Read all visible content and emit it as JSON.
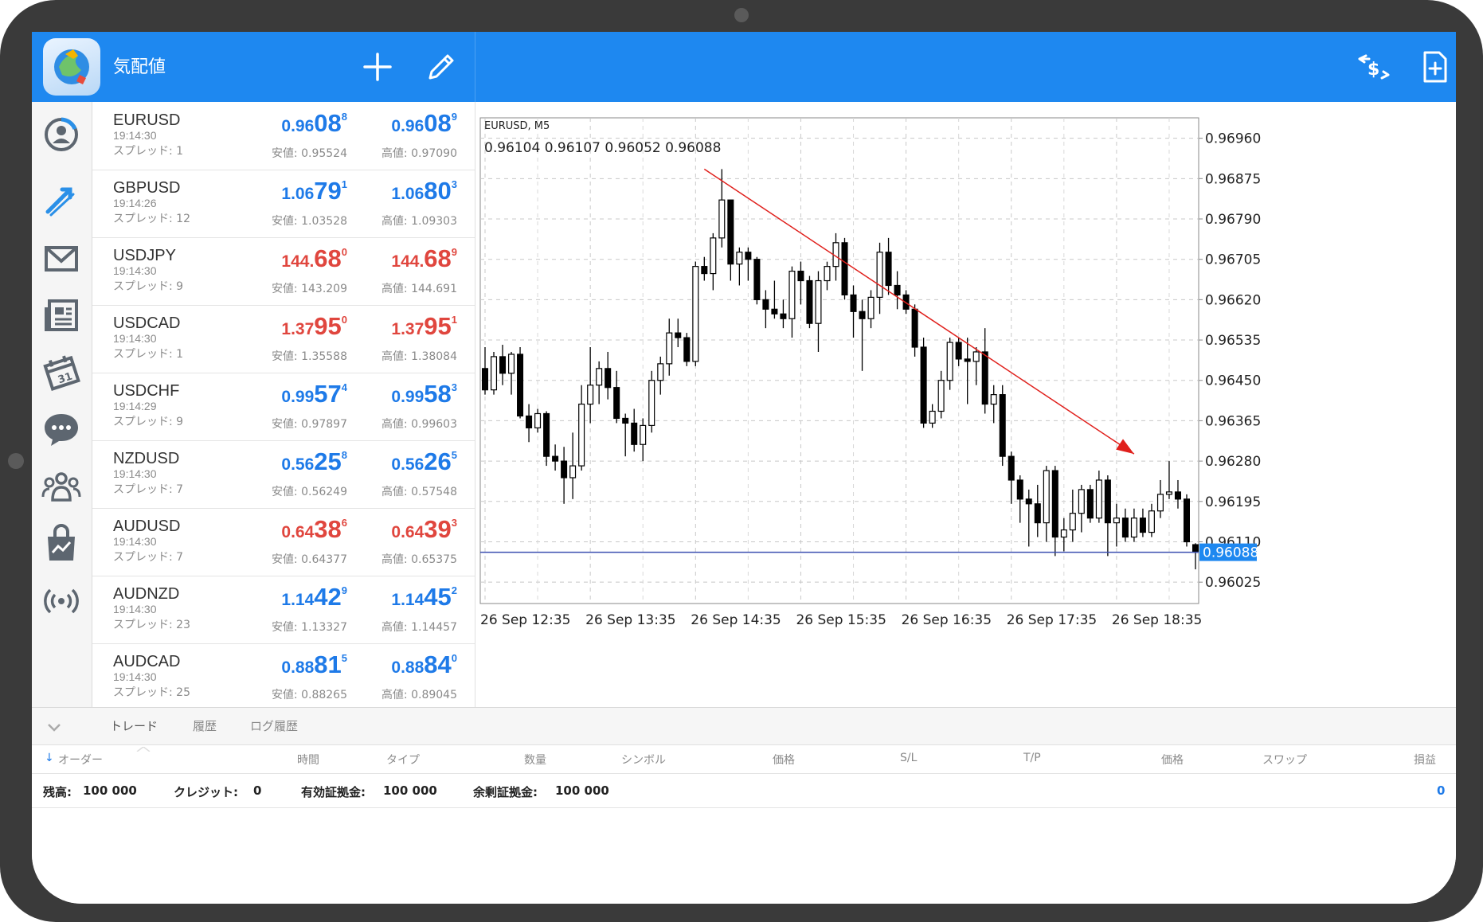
{
  "header": {
    "title": "気配値",
    "add_icon": "plus-icon",
    "edit_icon": "pencil-icon",
    "trade_icon": "trade-dollar-icon",
    "new_order_icon": "new-document-icon"
  },
  "sidebar": {
    "items": [
      {
        "icon": "account-icon",
        "active": false
      },
      {
        "icon": "trade-arrows-icon",
        "active": true
      },
      {
        "icon": "mail-icon",
        "active": false
      },
      {
        "icon": "news-icon",
        "active": false
      },
      {
        "icon": "calendar-icon",
        "active": false
      },
      {
        "icon": "chat-icon",
        "active": false
      },
      {
        "icon": "community-icon",
        "active": false
      },
      {
        "icon": "market-icon",
        "active": false
      },
      {
        "icon": "signal-icon",
        "active": false
      }
    ]
  },
  "quotes": [
    {
      "symbol": "EURUSD",
      "time": "19:14:30",
      "spread": "スプレッド: 1",
      "bid": {
        "s": "0.96",
        "b": "08",
        "p": "8"
      },
      "ask": {
        "s": "0.96",
        "b": "08",
        "p": "9"
      },
      "low": "安値: 0.95524",
      "high": "高値: 0.97090",
      "color": "blue"
    },
    {
      "symbol": "GBPUSD",
      "time": "19:14:26",
      "spread": "スプレッド: 12",
      "bid": {
        "s": "1.06",
        "b": "79",
        "p": "1"
      },
      "ask": {
        "s": "1.06",
        "b": "80",
        "p": "3"
      },
      "low": "安値: 1.03528",
      "high": "高値: 1.09303",
      "color": "blue"
    },
    {
      "symbol": "USDJPY",
      "time": "19:14:30",
      "spread": "スプレッド: 9",
      "bid": {
        "s": "144.",
        "b": "68",
        "p": "0"
      },
      "ask": {
        "s": "144.",
        "b": "68",
        "p": "9"
      },
      "low": "安値: 143.209",
      "high": "高値: 144.691",
      "color": "red"
    },
    {
      "symbol": "USDCAD",
      "time": "19:14:30",
      "spread": "スプレッド: 1",
      "bid": {
        "s": "1.37",
        "b": "95",
        "p": "0"
      },
      "ask": {
        "s": "1.37",
        "b": "95",
        "p": "1"
      },
      "low": "安値: 1.35588",
      "high": "高値: 1.38084",
      "color": "red"
    },
    {
      "symbol": "USDCHF",
      "time": "19:14:29",
      "spread": "スプレッド: 9",
      "bid": {
        "s": "0.99",
        "b": "57",
        "p": "4"
      },
      "ask": {
        "s": "0.99",
        "b": "58",
        "p": "3"
      },
      "low": "安値: 0.97897",
      "high": "高値: 0.99603",
      "color": "blue"
    },
    {
      "symbol": "NZDUSD",
      "time": "19:14:30",
      "spread": "スプレッド: 7",
      "bid": {
        "s": "0.56",
        "b": "25",
        "p": "8"
      },
      "ask": {
        "s": "0.56",
        "b": "26",
        "p": "5"
      },
      "low": "安値: 0.56249",
      "high": "高値: 0.57548",
      "color": "blue"
    },
    {
      "symbol": "AUDUSD",
      "time": "19:14:30",
      "spread": "スプレッド: 7",
      "bid": {
        "s": "0.64",
        "b": "38",
        "p": "6"
      },
      "ask": {
        "s": "0.64",
        "b": "39",
        "p": "3"
      },
      "low": "安値: 0.64377",
      "high": "高値: 0.65375",
      "color": "red"
    },
    {
      "symbol": "AUDNZD",
      "time": "19:14:30",
      "spread": "スプレッド: 23",
      "bid": {
        "s": "1.14",
        "b": "42",
        "p": "9"
      },
      "ask": {
        "s": "1.14",
        "b": "45",
        "p": "2"
      },
      "low": "安値: 1.13327",
      "high": "高値: 1.14457",
      "color": "blue"
    },
    {
      "symbol": "AUDCAD",
      "time": "19:14:30",
      "spread": "スプレッド: 25",
      "bid": {
        "s": "0.88",
        "b": "81",
        "p": "5"
      },
      "ask": {
        "s": "0.88",
        "b": "84",
        "p": "0"
      },
      "low": "安値: 0.88265",
      "high": "高値: 0.89045",
      "color": "blue"
    }
  ],
  "chart_data": {
    "type": "candlestick",
    "symbol_label": "EURUSD, M5",
    "ohlc_label": "0.96104 0.96107 0.96052 0.96088",
    "ylim": [
      0.9598,
      0.97003
    ],
    "y_ticks": [
      "0.96960",
      "0.96875",
      "0.96790",
      "0.96705",
      "0.96620",
      "0.96535",
      "0.96450",
      "0.96365",
      "0.96280",
      "0.96195",
      "0.96110",
      "0.96025"
    ],
    "x_ticks": [
      "26 Sep 12:35",
      "26 Sep 13:35",
      "26 Sep 14:35",
      "26 Sep 15:35",
      "26 Sep 16:35",
      "26 Sep 17:35",
      "26 Sep 18:35"
    ],
    "current_price": "0.96088",
    "price_line_color": "#3b4fb0",
    "trendline_color": "#e0201c",
    "trendline": {
      "from": {
        "x": "26 Sep 14:40",
        "y": 0.96895
      },
      "to": {
        "x": "26 Sep 18:45",
        "y": 0.96295
      }
    },
    "up_color": "#ffffff",
    "down_color": "#000000",
    "candles": [
      {
        "t": "26 Sep 12:35",
        "o": 0.96475,
        "h": 0.9652,
        "l": 0.9642,
        "c": 0.9643
      },
      {
        "t": "26 Sep 12:40",
        "o": 0.9643,
        "h": 0.9651,
        "l": 0.9642,
        "c": 0.965
      },
      {
        "t": "26 Sep 12:45",
        "o": 0.965,
        "h": 0.96525,
        "l": 0.9644,
        "c": 0.96465
      },
      {
        "t": "26 Sep 12:50",
        "o": 0.96465,
        "h": 0.9651,
        "l": 0.9642,
        "c": 0.96505
      },
      {
        "t": "26 Sep 12:55",
        "o": 0.96505,
        "h": 0.9652,
        "l": 0.9637,
        "c": 0.96375
      },
      {
        "t": "26 Sep 13:00",
        "o": 0.96375,
        "h": 0.964,
        "l": 0.9632,
        "c": 0.9635
      },
      {
        "t": "26 Sep 13:05",
        "o": 0.9635,
        "h": 0.9639,
        "l": 0.9634,
        "c": 0.9638
      },
      {
        "t": "26 Sep 13:10",
        "o": 0.9638,
        "h": 0.96385,
        "l": 0.9627,
        "c": 0.9629
      },
      {
        "t": "26 Sep 13:15",
        "o": 0.9629,
        "h": 0.96315,
        "l": 0.9626,
        "c": 0.9628
      },
      {
        "t": "26 Sep 13:20",
        "o": 0.9628,
        "h": 0.9631,
        "l": 0.9619,
        "c": 0.96245
      },
      {
        "t": "26 Sep 13:25",
        "o": 0.96245,
        "h": 0.9634,
        "l": 0.962,
        "c": 0.9627
      },
      {
        "t": "26 Sep 13:30",
        "o": 0.9627,
        "h": 0.9644,
        "l": 0.9626,
        "c": 0.964
      },
      {
        "t": "26 Sep 13:35",
        "o": 0.964,
        "h": 0.9652,
        "l": 0.9636,
        "c": 0.9644
      },
      {
        "t": "26 Sep 13:40",
        "o": 0.9644,
        "h": 0.9649,
        "l": 0.964,
        "c": 0.96475
      },
      {
        "t": "26 Sep 13:45",
        "o": 0.96475,
        "h": 0.9651,
        "l": 0.9641,
        "c": 0.96435
      },
      {
        "t": "26 Sep 13:50",
        "o": 0.96435,
        "h": 0.9647,
        "l": 0.9636,
        "c": 0.9637
      },
      {
        "t": "26 Sep 13:55",
        "o": 0.9637,
        "h": 0.9638,
        "l": 0.9629,
        "c": 0.9636
      },
      {
        "t": "26 Sep 14:00",
        "o": 0.9636,
        "h": 0.9639,
        "l": 0.963,
        "c": 0.96315
      },
      {
        "t": "26 Sep 14:05",
        "o": 0.96315,
        "h": 0.9637,
        "l": 0.9628,
        "c": 0.96355
      },
      {
        "t": "26 Sep 14:10",
        "o": 0.96355,
        "h": 0.9647,
        "l": 0.9634,
        "c": 0.9645
      },
      {
        "t": "26 Sep 14:15",
        "o": 0.9645,
        "h": 0.965,
        "l": 0.9642,
        "c": 0.96485
      },
      {
        "t": "26 Sep 14:20",
        "o": 0.96485,
        "h": 0.9658,
        "l": 0.9646,
        "c": 0.9655
      },
      {
        "t": "26 Sep 14:25",
        "o": 0.9655,
        "h": 0.9658,
        "l": 0.9652,
        "c": 0.9654
      },
      {
        "t": "26 Sep 14:30",
        "o": 0.9654,
        "h": 0.9655,
        "l": 0.9648,
        "c": 0.9649
      },
      {
        "t": "26 Sep 14:35",
        "o": 0.9649,
        "h": 0.967,
        "l": 0.9648,
        "c": 0.9669
      },
      {
        "t": "26 Sep 14:40",
        "o": 0.9669,
        "h": 0.9671,
        "l": 0.9666,
        "c": 0.96675
      },
      {
        "t": "26 Sep 14:45",
        "o": 0.96675,
        "h": 0.9676,
        "l": 0.9664,
        "c": 0.9675
      },
      {
        "t": "26 Sep 14:50",
        "o": 0.9675,
        "h": 0.96895,
        "l": 0.9673,
        "c": 0.9683
      },
      {
        "t": "26 Sep 14:55",
        "o": 0.9683,
        "h": 0.9683,
        "l": 0.9666,
        "c": 0.96695
      },
      {
        "t": "26 Sep 15:00",
        "o": 0.96695,
        "h": 0.9673,
        "l": 0.9665,
        "c": 0.9672
      },
      {
        "t": "26 Sep 15:05",
        "o": 0.9672,
        "h": 0.9673,
        "l": 0.9666,
        "c": 0.96705
      },
      {
        "t": "26 Sep 15:10",
        "o": 0.96705,
        "h": 0.9671,
        "l": 0.9661,
        "c": 0.9662
      },
      {
        "t": "26 Sep 15:15",
        "o": 0.9662,
        "h": 0.9664,
        "l": 0.9656,
        "c": 0.966
      },
      {
        "t": "26 Sep 15:20",
        "o": 0.966,
        "h": 0.9666,
        "l": 0.9658,
        "c": 0.9659
      },
      {
        "t": "26 Sep 15:25",
        "o": 0.9659,
        "h": 0.9662,
        "l": 0.9656,
        "c": 0.9658
      },
      {
        "t": "26 Sep 15:30",
        "o": 0.9658,
        "h": 0.9669,
        "l": 0.9654,
        "c": 0.9668
      },
      {
        "t": "26 Sep 15:35",
        "o": 0.9668,
        "h": 0.967,
        "l": 0.9661,
        "c": 0.9666
      },
      {
        "t": "26 Sep 15:40",
        "o": 0.9666,
        "h": 0.9667,
        "l": 0.9656,
        "c": 0.9657
      },
      {
        "t": "26 Sep 15:45",
        "o": 0.9657,
        "h": 0.9668,
        "l": 0.9651,
        "c": 0.9666
      },
      {
        "t": "26 Sep 15:50",
        "o": 0.9666,
        "h": 0.967,
        "l": 0.9664,
        "c": 0.9669
      },
      {
        "t": "26 Sep 15:55",
        "o": 0.9669,
        "h": 0.9676,
        "l": 0.9666,
        "c": 0.9674
      },
      {
        "t": "26 Sep 16:00",
        "o": 0.9674,
        "h": 0.9675,
        "l": 0.9662,
        "c": 0.9663
      },
      {
        "t": "26 Sep 16:05",
        "o": 0.9663,
        "h": 0.9665,
        "l": 0.9654,
        "c": 0.96595
      },
      {
        "t": "26 Sep 16:10",
        "o": 0.96595,
        "h": 0.9662,
        "l": 0.9647,
        "c": 0.9658
      },
      {
        "t": "26 Sep 16:15",
        "o": 0.9658,
        "h": 0.9664,
        "l": 0.9656,
        "c": 0.96625
      },
      {
        "t": "26 Sep 16:20",
        "o": 0.96625,
        "h": 0.9674,
        "l": 0.9659,
        "c": 0.9672
      },
      {
        "t": "26 Sep 16:25",
        "o": 0.9672,
        "h": 0.9675,
        "l": 0.9663,
        "c": 0.9665
      },
      {
        "t": "26 Sep 16:30",
        "o": 0.9665,
        "h": 0.9668,
        "l": 0.966,
        "c": 0.9663
      },
      {
        "t": "26 Sep 16:35",
        "o": 0.9663,
        "h": 0.9664,
        "l": 0.9659,
        "c": 0.966
      },
      {
        "t": "26 Sep 16:40",
        "o": 0.966,
        "h": 0.9661,
        "l": 0.965,
        "c": 0.9652
      },
      {
        "t": "26 Sep 16:45",
        "o": 0.9652,
        "h": 0.9654,
        "l": 0.9635,
        "c": 0.9636
      },
      {
        "t": "26 Sep 16:50",
        "o": 0.9636,
        "h": 0.964,
        "l": 0.9635,
        "c": 0.96385
      },
      {
        "t": "26 Sep 16:55",
        "o": 0.96385,
        "h": 0.9647,
        "l": 0.9637,
        "c": 0.9645
      },
      {
        "t": "26 Sep 17:00",
        "o": 0.9645,
        "h": 0.9654,
        "l": 0.9643,
        "c": 0.9653
      },
      {
        "t": "26 Sep 17:05",
        "o": 0.9653,
        "h": 0.9654,
        "l": 0.9648,
        "c": 0.96495
      },
      {
        "t": "26 Sep 17:10",
        "o": 0.96495,
        "h": 0.9654,
        "l": 0.964,
        "c": 0.9649
      },
      {
        "t": "26 Sep 17:15",
        "o": 0.9649,
        "h": 0.9652,
        "l": 0.9644,
        "c": 0.9651
      },
      {
        "t": "26 Sep 17:20",
        "o": 0.9651,
        "h": 0.9656,
        "l": 0.9638,
        "c": 0.964
      },
      {
        "t": "26 Sep 17:25",
        "o": 0.964,
        "h": 0.9644,
        "l": 0.9636,
        "c": 0.9642
      },
      {
        "t": "26 Sep 17:30",
        "o": 0.9642,
        "h": 0.9644,
        "l": 0.9627,
        "c": 0.9629
      },
      {
        "t": "26 Sep 17:35",
        "o": 0.9629,
        "h": 0.963,
        "l": 0.9619,
        "c": 0.9624
      },
      {
        "t": "26 Sep 17:40",
        "o": 0.9624,
        "h": 0.9625,
        "l": 0.9615,
        "c": 0.962
      },
      {
        "t": "26 Sep 17:45",
        "o": 0.962,
        "h": 0.9622,
        "l": 0.961,
        "c": 0.9619
      },
      {
        "t": "26 Sep 17:50",
        "o": 0.9619,
        "h": 0.9623,
        "l": 0.9612,
        "c": 0.9615
      },
      {
        "t": "26 Sep 17:55",
        "o": 0.9615,
        "h": 0.9627,
        "l": 0.9611,
        "c": 0.9626
      },
      {
        "t": "26 Sep 18:00",
        "o": 0.9626,
        "h": 0.9627,
        "l": 0.9608,
        "c": 0.9612
      },
      {
        "t": "26 Sep 18:05",
        "o": 0.9612,
        "h": 0.9616,
        "l": 0.9609,
        "c": 0.96135
      },
      {
        "t": "26 Sep 18:10",
        "o": 0.96135,
        "h": 0.9622,
        "l": 0.9611,
        "c": 0.9617
      },
      {
        "t": "26 Sep 18:15",
        "o": 0.9617,
        "h": 0.9623,
        "l": 0.9613,
        "c": 0.9622
      },
      {
        "t": "26 Sep 18:20",
        "o": 0.9622,
        "h": 0.9623,
        "l": 0.9615,
        "c": 0.9616
      },
      {
        "t": "26 Sep 18:25",
        "o": 0.9616,
        "h": 0.9626,
        "l": 0.9615,
        "c": 0.9624
      },
      {
        "t": "26 Sep 18:30",
        "o": 0.9624,
        "h": 0.9625,
        "l": 0.9608,
        "c": 0.9615
      },
      {
        "t": "26 Sep 18:35",
        "o": 0.9615,
        "h": 0.9619,
        "l": 0.961,
        "c": 0.9616
      },
      {
        "t": "26 Sep 18:40",
        "o": 0.9616,
        "h": 0.9618,
        "l": 0.9611,
        "c": 0.9612
      },
      {
        "t": "26 Sep 18:45",
        "o": 0.9612,
        "h": 0.9618,
        "l": 0.9611,
        "c": 0.9616
      },
      {
        "t": "26 Sep 18:50",
        "o": 0.9616,
        "h": 0.9618,
        "l": 0.9612,
        "c": 0.9613
      },
      {
        "t": "26 Sep 18:55",
        "o": 0.9613,
        "h": 0.9619,
        "l": 0.9612,
        "c": 0.96175
      },
      {
        "t": "26 Sep 19:00",
        "o": 0.96175,
        "h": 0.9624,
        "l": 0.9616,
        "c": 0.9621
      },
      {
        "t": "26 Sep 19:05",
        "o": 0.9621,
        "h": 0.9628,
        "l": 0.962,
        "c": 0.96215
      },
      {
        "t": "26 Sep 19:10",
        "o": 0.96215,
        "h": 0.9624,
        "l": 0.9618,
        "c": 0.962
      },
      {
        "t": "26 Sep 19:15",
        "o": 0.962,
        "h": 0.9621,
        "l": 0.961,
        "c": 0.9611
      },
      {
        "t": "26 Sep 19:20",
        "o": 0.96104,
        "h": 0.96107,
        "l": 0.96052,
        "c": 0.96088
      }
    ]
  },
  "bottom": {
    "collapse_icon": "chevron-down-icon",
    "tabs": [
      "トレード",
      "履歴",
      "ログ履歴"
    ],
    "columns": [
      "オーダー",
      "時間",
      "タイプ",
      "数量",
      "シンボル",
      "価格",
      "S/L",
      "T/P",
      "価格",
      "スワップ",
      "損益"
    ],
    "sort_icon": "sort-down-arrow-icon",
    "balance_label": "残高:",
    "balance_value": "100 000",
    "credit_label": "クレジット:",
    "credit_value": "0",
    "equity_label": "有効証拠金:",
    "equity_value": "100 000",
    "free_margin_label": "余剰証拠金:",
    "free_margin_value": "100 000",
    "profit_total": "0"
  },
  "colors": {
    "header_blue": "#1e88f0",
    "bid_ask_blue": "#1e7ae8",
    "bid_ask_red": "#e0463e"
  }
}
